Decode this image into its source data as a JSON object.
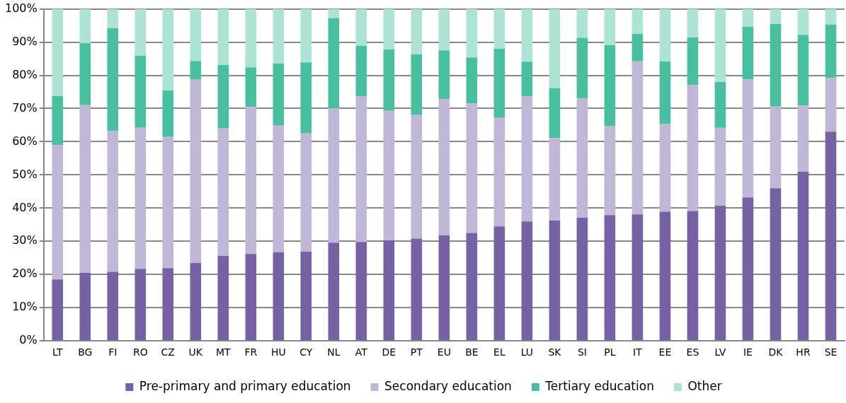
{
  "chart_data": {
    "type": "bar",
    "stacked": true,
    "categories": [
      "LT",
      "BG",
      "FI",
      "RO",
      "CZ",
      "UK",
      "MT",
      "FR",
      "HU",
      "CY",
      "NL",
      "AT",
      "DE",
      "PT",
      "EU",
      "BE",
      "EL",
      "LU",
      "SK",
      "SI",
      "PL",
      "IT",
      "EE",
      "ES",
      "LV",
      "IE",
      "DK",
      "HR",
      "SE"
    ],
    "series": [
      {
        "name": "Pre-primary and primary education",
        "color": "#7561a3",
        "values": [
          18.5,
          20.5,
          20.8,
          21.7,
          21.9,
          23.5,
          25.6,
          26.2,
          26.7,
          26.9,
          29.6,
          29.8,
          30.3,
          30.8,
          31.8,
          32.5,
          34.5,
          36,
          36.3,
          37.1,
          37.9,
          38.1,
          38.9,
          39.1,
          40.7,
          43.2,
          46,
          51,
          63
        ]
      },
      {
        "name": "Secondary education",
        "color": "#c0b6d6",
        "values": [
          40.5,
          50.5,
          42.5,
          42.5,
          39.5,
          55.2,
          38.4,
          44.3,
          38.3,
          35.6,
          40.5,
          43.9,
          39,
          37.2,
          41,
          39.1,
          32.7,
          37.6,
          24.8,
          35.9,
          26.9,
          46.1,
          26.4,
          37.9,
          23.5,
          35.6,
          24.6,
          19.9,
          16.2
        ]
      },
      {
        "name": "Tertiary education",
        "color": "#48bf9f",
        "values": [
          14.8,
          18.7,
          30.9,
          21.7,
          14,
          5.6,
          19.1,
          11.9,
          18.5,
          21.4,
          27.1,
          15.2,
          18.5,
          18.3,
          14.7,
          13.8,
          20.8,
          10.5,
          15,
          18.3,
          24.3,
          8.3,
          18.9,
          14.4,
          13.8,
          15.8,
          24.9,
          21.3,
          16.1
        ]
      },
      {
        "name": "Other",
        "color": "#ade3d5",
        "values": [
          26.2,
          10.3,
          5.8,
          14.1,
          24.6,
          15.7,
          16.9,
          17.6,
          16.5,
          16.1,
          2.8,
          11.1,
          12.2,
          13.7,
          12.5,
          14.6,
          12,
          15.9,
          23.9,
          8.7,
          10.9,
          7.5,
          15.8,
          8.6,
          22,
          5.4,
          4.5,
          7.8,
          4.7
        ]
      }
    ],
    "ylim": [
      0,
      100
    ],
    "yticks": [
      {
        "value": 0,
        "label": "0%"
      },
      {
        "value": 10,
        "label": "10%"
      },
      {
        "value": 20,
        "label": "20%"
      },
      {
        "value": 30,
        "label": "30%"
      },
      {
        "value": 40,
        "label": "40%"
      },
      {
        "value": 50,
        "label": "50%"
      },
      {
        "value": 60,
        "label": "60%"
      },
      {
        "value": 70,
        "label": "70%"
      },
      {
        "value": 80,
        "label": "80%"
      },
      {
        "value": 90,
        "label": "90%"
      },
      {
        "value": 100,
        "label": "100%"
      }
    ],
    "grid": "y",
    "legend": "bottom"
  }
}
